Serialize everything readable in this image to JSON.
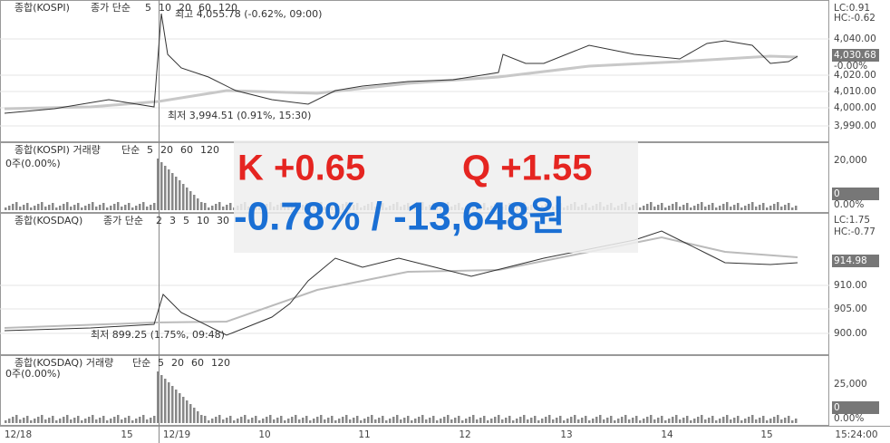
{
  "kospi_price": {
    "name": "종합(KOSPI)",
    "label": "종가 단순",
    "ma": [
      "5",
      "10",
      "20",
      "60",
      "120"
    ],
    "high_note": "최고 4,055.78 (-0.62%, 09:00)",
    "low_note": "최저 3,994.51 (0.91%, 15:30)",
    "axis": [
      "LC:0.91",
      "HC:-0.62",
      "4,040.00",
      "4,030.68",
      "-0.00%",
      "4,020.00",
      "4,010.00",
      "4,000.00",
      "3,990.00"
    ]
  },
  "kospi_volume": {
    "name": "종합(KOSPI) 거래량",
    "label": "단순",
    "ma": [
      "5",
      "20",
      "60",
      "120"
    ],
    "info": "0주(0.00%)",
    "axis": [
      "20,000",
      "0",
      "0.00%"
    ]
  },
  "kosdaq_price": {
    "name": "종합(KOSDAQ)",
    "label": "종가 단순",
    "ma": [
      "2",
      "3",
      "5",
      "10",
      "30"
    ],
    "low_note": "최저 899.25 (1.75%, 09:48)",
    "axis": [
      "LC:1.75",
      "HC:-0.77",
      "914.98",
      "910.00",
      "905.00",
      "900.00"
    ]
  },
  "kosdaq_volume": {
    "name": "종합(KOSDAQ) 거래량",
    "label": "단순",
    "ma": [
      "5",
      "20",
      "60",
      "120"
    ],
    "info": "0주(0.00%)",
    "axis": [
      "25,000",
      "0",
      "0.00%"
    ]
  },
  "time_axis": [
    "12/18",
    "15",
    "12/19",
    "10",
    "11",
    "12",
    "13",
    "14",
    "15",
    "15:24:00"
  ],
  "overlay": {
    "k": "K +0.65",
    "q": "Q +1.55",
    "change": "-0.78% / -13,648원"
  }
}
